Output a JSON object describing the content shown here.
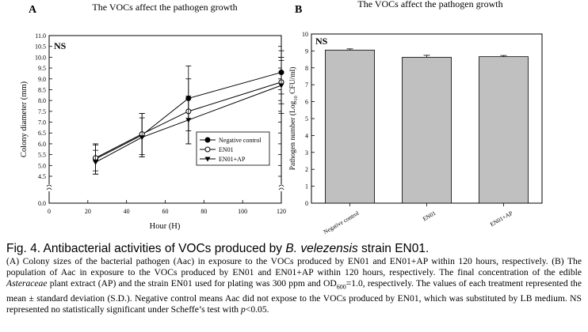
{
  "chart_data": [
    {
      "panel": "A",
      "type": "line",
      "title": "The VOCs affect the pathogen growth",
      "annotation": "NS",
      "xlabel": "Hour (H)",
      "ylabel": "Colony diameter (mm)",
      "xlim": [
        0,
        120
      ],
      "xticks": [
        "0",
        "20",
        "40",
        "60",
        "80",
        "100",
        "120"
      ],
      "yticks_upper": [
        "4.5",
        "5.0",
        "5.5",
        "6.0",
        "6.5",
        "7.0",
        "7.5",
        "8.0",
        "8.5",
        "9.0",
        "9.5",
        "10.0",
        "10.5",
        "11.0"
      ],
      "ytick_lower": "0.0",
      "axis_break": true,
      "legend_position": "lower-right",
      "x": [
        24,
        48,
        72,
        120
      ],
      "series": [
        {
          "name": "Negative control",
          "marker": "filled-circle",
          "values": [
            5.3,
            6.4,
            8.1,
            9.3
          ],
          "errors": [
            0.7,
            1.0,
            1.5,
            1.0
          ]
        },
        {
          "name": "EN01",
          "marker": "open-circle",
          "values": [
            5.35,
            6.45,
            7.5,
            8.85
          ],
          "errors": [
            0.6,
            0.95,
            1.5,
            1.0
          ]
        },
        {
          "name": "EN01+AP",
          "marker": "filled-triangle-down",
          "values": [
            5.15,
            6.3,
            7.1,
            8.7
          ],
          "errors": [
            0.55,
            0.9,
            1.1,
            1.3
          ]
        }
      ]
    },
    {
      "panel": "B",
      "type": "bar",
      "title": "The VOCs affect the pathogen growth",
      "annotation": "NS",
      "ylabel": "Pathogen number (Log10 CFU/ml)",
      "ylim": [
        0,
        10
      ],
      "yticks": [
        "0",
        "1",
        "2",
        "3",
        "4",
        "5",
        "6",
        "7",
        "8",
        "9",
        "10"
      ],
      "categories": [
        "Negative control",
        "EN01",
        "EN01+AP"
      ],
      "values": [
        9.05,
        8.62,
        8.66
      ],
      "errors": [
        0.07,
        0.12,
        0.07
      ],
      "bar_color": "#c0c0c0"
    }
  ],
  "caption": {
    "title_prefix": "Fig. 4. Antibacterial activities of VOCs produced by ",
    "title_species": "B. velezensis",
    "title_suffix": " strain EN01.",
    "p1": "(A) Colony sizes of the bacterial pathogen (Aac) in exposure to the VOCs produced by EN01 and EN01+AP within 120 hours, respectively. (B) The population of Aac in exposure to the VOCs produced by EN01 and EN01+AP within 120 hours, respectively. The final concentration of the edible ",
    "p1_italic": "Asteraceae",
    "p1_b": " plant extract (AP) and the strain EN01 used for plating was 300 ppm and OD",
    "od_sub": "600",
    "p1_c": "=1.0, respectively. The values of each treatment represented the mean ± standard deviation (S.D.). Negative control means Aac did not expose to the VOCs produced by EN01, which was substituted by LB medium. NS represented no statistically significant under Scheffe’s test with ",
    "p_italic": "p",
    "p1_end": "<0.05."
  }
}
